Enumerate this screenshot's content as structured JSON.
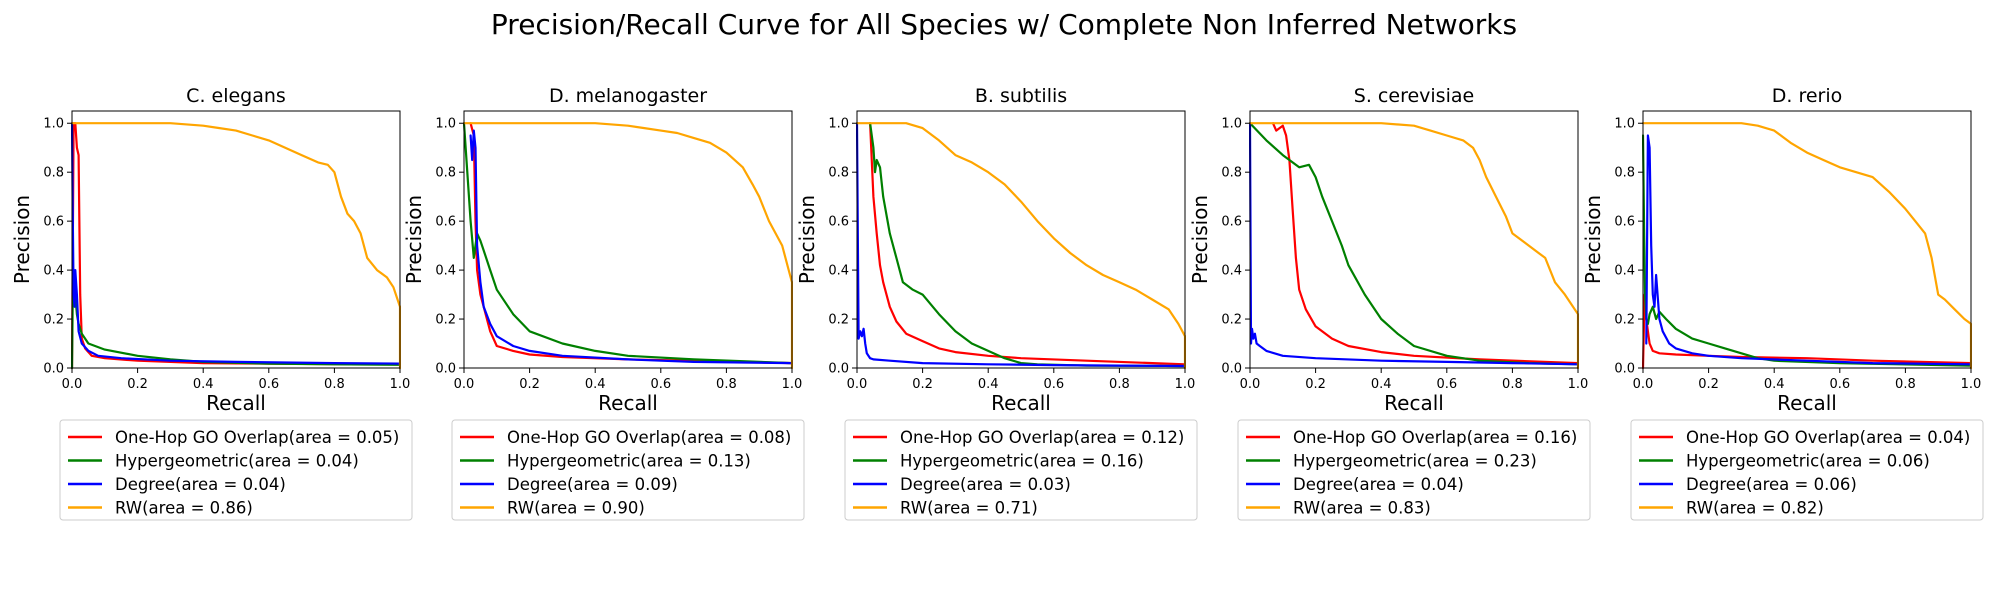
{
  "figure_title": "Precision/Recall Curve for All Species w/ Complete Non Inferred Networks",
  "colors": {
    "One-Hop GO Overlap": "#ff0000",
    "Hypergeometric": "#008000",
    "Degree": "#0000ff",
    "RW": "#ffa500"
  },
  "chart_data": [
    {
      "type": "line",
      "title": "C. elegans",
      "xlabel": "Recall",
      "ylabel": "Precision",
      "xlim": [
        0,
        1
      ],
      "ylim": [
        0,
        1.05
      ],
      "xticks": [
        "0.0",
        "0.2",
        "0.4",
        "0.6",
        "0.8",
        "1.0"
      ],
      "yticks": [
        "0.0",
        "0.2",
        "0.4",
        "0.6",
        "0.8",
        "1.0"
      ],
      "grid": false,
      "legend_position": "below",
      "series": [
        {
          "name": "One-Hop GO Overlap",
          "legend": "One-Hop GO Overlap(area = 0.05)",
          "x": [
            0,
            0.005,
            0.01,
            0.015,
            0.02,
            0.025,
            0.03,
            0.04,
            0.06,
            0.1,
            0.2,
            0.4,
            0.6,
            0.8,
            1.0
          ],
          "y": [
            0,
            1.0,
            1.0,
            0.9,
            0.87,
            0.3,
            0.12,
            0.08,
            0.05,
            0.04,
            0.03,
            0.02,
            0.018,
            0.016,
            0.015
          ]
        },
        {
          "name": "Hypergeometric",
          "legend": "Hypergeometric(area = 0.04)",
          "x": [
            0,
            0.003,
            0.006,
            0.01,
            0.015,
            0.02,
            0.03,
            0.05,
            0.1,
            0.2,
            0.3,
            0.4,
            0.6,
            0.8,
            1.0
          ],
          "y": [
            0,
            0.4,
            0.35,
            0.3,
            0.22,
            0.18,
            0.14,
            0.1,
            0.075,
            0.05,
            0.035,
            0.025,
            0.018,
            0.015,
            0.013
          ]
        },
        {
          "name": "Degree",
          "legend": "Degree(area = 0.04)",
          "x": [
            0,
            0.002,
            0.005,
            0.008,
            0.01,
            0.015,
            0.02,
            0.03,
            0.05,
            0.08,
            0.15,
            0.3,
            0.5,
            0.8,
            1.0
          ],
          "y": [
            1.0,
            0.65,
            0.3,
            0.25,
            0.4,
            0.3,
            0.15,
            0.1,
            0.07,
            0.05,
            0.04,
            0.03,
            0.025,
            0.02,
            0.018
          ]
        },
        {
          "name": "RW",
          "legend": "RW(area = 0.86)",
          "x": [
            0,
            0.1,
            0.2,
            0.3,
            0.4,
            0.45,
            0.5,
            0.55,
            0.6,
            0.65,
            0.7,
            0.75,
            0.78,
            0.8,
            0.82,
            0.84,
            0.86,
            0.88,
            0.9,
            0.93,
            0.96,
            0.98,
            1.0,
            1.0
          ],
          "y": [
            1.0,
            1.0,
            1.0,
            1.0,
            0.99,
            0.98,
            0.97,
            0.95,
            0.93,
            0.9,
            0.87,
            0.84,
            0.83,
            0.8,
            0.7,
            0.63,
            0.6,
            0.55,
            0.45,
            0.4,
            0.37,
            0.33,
            0.25,
            0.0
          ]
        }
      ]
    },
    {
      "type": "line",
      "title": "D. melanogaster",
      "xlabel": "Recall",
      "ylabel": "Precision",
      "xlim": [
        0,
        1
      ],
      "ylim": [
        0,
        1.05
      ],
      "xticks": [
        "0.0",
        "0.2",
        "0.4",
        "0.6",
        "0.8",
        "1.0"
      ],
      "yticks": [
        "0.0",
        "0.2",
        "0.4",
        "0.6",
        "0.8",
        "1.0"
      ],
      "grid": false,
      "legend_position": "below",
      "series": [
        {
          "name": "One-Hop GO Overlap",
          "legend": "One-Hop GO Overlap(area = 0.08)",
          "x": [
            0.02,
            0.03,
            0.035,
            0.04,
            0.05,
            0.06,
            0.08,
            0.1,
            0.15,
            0.2,
            0.3,
            0.5,
            0.7,
            1.0
          ],
          "y": [
            1.0,
            0.95,
            0.6,
            0.4,
            0.3,
            0.25,
            0.15,
            0.09,
            0.07,
            0.055,
            0.045,
            0.035,
            0.03,
            0.02
          ]
        },
        {
          "name": "Hypergeometric",
          "legend": "Hypergeometric(area = 0.13)",
          "x": [
            0,
            0.01,
            0.02,
            0.03,
            0.04,
            0.05,
            0.06,
            0.08,
            0.1,
            0.15,
            0.2,
            0.3,
            0.4,
            0.5,
            0.7,
            1.0
          ],
          "y": [
            1.0,
            0.8,
            0.6,
            0.45,
            0.55,
            0.52,
            0.48,
            0.4,
            0.32,
            0.22,
            0.15,
            0.1,
            0.07,
            0.05,
            0.035,
            0.02
          ]
        },
        {
          "name": "Degree",
          "legend": "Degree(area = 0.09)",
          "x": [
            0.02,
            0.025,
            0.03,
            0.035,
            0.04,
            0.05,
            0.06,
            0.08,
            0.1,
            0.15,
            0.2,
            0.3,
            0.5,
            0.7,
            1.0
          ],
          "y": [
            0.95,
            0.85,
            0.97,
            0.9,
            0.5,
            0.35,
            0.25,
            0.18,
            0.13,
            0.09,
            0.07,
            0.05,
            0.035,
            0.025,
            0.02
          ]
        },
        {
          "name": "RW",
          "legend": "RW(area = 0.90)",
          "x": [
            0,
            0.1,
            0.2,
            0.3,
            0.4,
            0.5,
            0.55,
            0.6,
            0.65,
            0.7,
            0.75,
            0.8,
            0.85,
            0.88,
            0.9,
            0.93,
            0.95,
            0.97,
            0.99,
            1.0,
            1.0
          ],
          "y": [
            1.0,
            1.0,
            1.0,
            1.0,
            1.0,
            0.99,
            0.98,
            0.97,
            0.96,
            0.94,
            0.92,
            0.88,
            0.82,
            0.75,
            0.7,
            0.6,
            0.55,
            0.5,
            0.4,
            0.35,
            0.0
          ]
        }
      ]
    },
    {
      "type": "line",
      "title": "B. subtilis",
      "xlabel": "Recall",
      "ylabel": "Precision",
      "xlim": [
        0,
        1
      ],
      "ylim": [
        0,
        1.05
      ],
      "xticks": [
        "0.0",
        "0.2",
        "0.4",
        "0.6",
        "0.8",
        "1.0"
      ],
      "yticks": [
        "0.0",
        "0.2",
        "0.4",
        "0.6",
        "0.8",
        "1.0"
      ],
      "grid": false,
      "legend_position": "below",
      "series": [
        {
          "name": "One-Hop GO Overlap",
          "legend": "One-Hop GO Overlap(area = 0.12)",
          "x": [
            0.04,
            0.05,
            0.06,
            0.07,
            0.08,
            0.1,
            0.12,
            0.15,
            0.2,
            0.25,
            0.3,
            0.4,
            0.5,
            0.7,
            1.0
          ],
          "y": [
            1.0,
            0.7,
            0.55,
            0.42,
            0.35,
            0.25,
            0.19,
            0.14,
            0.11,
            0.08,
            0.065,
            0.05,
            0.04,
            0.03,
            0.015
          ]
        },
        {
          "name": "Hypergeometric",
          "legend": "Hypergeometric(area = 0.16)",
          "x": [
            0.04,
            0.05,
            0.055,
            0.06,
            0.07,
            0.08,
            0.1,
            0.12,
            0.14,
            0.17,
            0.2,
            0.25,
            0.3,
            0.35,
            0.4,
            0.45,
            0.5,
            0.55,
            0.7,
            1.0
          ],
          "y": [
            1.0,
            0.9,
            0.8,
            0.85,
            0.82,
            0.7,
            0.55,
            0.45,
            0.35,
            0.32,
            0.3,
            0.22,
            0.15,
            0.1,
            0.07,
            0.04,
            0.02,
            0.015,
            0.01,
            0.008
          ]
        },
        {
          "name": "Degree",
          "legend": "Degree(area = 0.03)",
          "x": [
            0,
            0.005,
            0.01,
            0.015,
            0.02,
            0.025,
            0.03,
            0.04,
            0.05,
            0.1,
            0.2,
            0.4,
            0.6,
            0.8,
            1.0
          ],
          "y": [
            1.0,
            0.12,
            0.15,
            0.13,
            0.16,
            0.1,
            0.06,
            0.04,
            0.035,
            0.03,
            0.02,
            0.015,
            0.012,
            0.01,
            0.008
          ]
        },
        {
          "name": "RW",
          "legend": "RW(area = 0.71)",
          "x": [
            0,
            0.1,
            0.15,
            0.2,
            0.25,
            0.3,
            0.35,
            0.4,
            0.45,
            0.5,
            0.55,
            0.6,
            0.65,
            0.7,
            0.75,
            0.8,
            0.85,
            0.9,
            0.95,
            0.98,
            1.0,
            1.0
          ],
          "y": [
            1.0,
            1.0,
            1.0,
            0.98,
            0.93,
            0.87,
            0.84,
            0.8,
            0.75,
            0.68,
            0.6,
            0.53,
            0.47,
            0.42,
            0.38,
            0.35,
            0.32,
            0.28,
            0.24,
            0.18,
            0.13,
            0.0
          ]
        }
      ]
    },
    {
      "type": "line",
      "title": "S. cerevisiae",
      "xlabel": "Recall",
      "ylabel": "Precision",
      "xlim": [
        0,
        1
      ],
      "ylim": [
        0,
        1.05
      ],
      "xticks": [
        "0.0",
        "0.2",
        "0.4",
        "0.6",
        "0.8",
        "1.0"
      ],
      "yticks": [
        "0.0",
        "0.2",
        "0.4",
        "0.6",
        "0.8",
        "1.0"
      ],
      "grid": false,
      "legend_position": "below",
      "series": [
        {
          "name": "One-Hop GO Overlap",
          "legend": "One-Hop GO Overlap(area = 0.16)",
          "x": [
            0.07,
            0.08,
            0.1,
            0.11,
            0.12,
            0.13,
            0.14,
            0.15,
            0.17,
            0.2,
            0.25,
            0.3,
            0.4,
            0.5,
            0.7,
            1.0
          ],
          "y": [
            1.0,
            0.97,
            0.99,
            0.95,
            0.85,
            0.65,
            0.45,
            0.32,
            0.24,
            0.17,
            0.12,
            0.09,
            0.065,
            0.05,
            0.035,
            0.02
          ]
        },
        {
          "name": "Hypergeometric",
          "legend": "Hypergeometric(area = 0.23)",
          "x": [
            0,
            0.05,
            0.1,
            0.15,
            0.18,
            0.2,
            0.22,
            0.25,
            0.28,
            0.3,
            0.35,
            0.4,
            0.45,
            0.5,
            0.6,
            0.7,
            0.85,
            1.0
          ],
          "y": [
            1.0,
            0.93,
            0.87,
            0.82,
            0.83,
            0.78,
            0.7,
            0.6,
            0.5,
            0.42,
            0.3,
            0.2,
            0.14,
            0.09,
            0.05,
            0.03,
            0.02,
            0.015
          ]
        },
        {
          "name": "Degree",
          "legend": "Degree(area = 0.04)",
          "x": [
            0,
            0.003,
            0.006,
            0.01,
            0.015,
            0.02,
            0.03,
            0.05,
            0.1,
            0.2,
            0.4,
            0.6,
            0.8,
            1.0
          ],
          "y": [
            1.0,
            0.1,
            0.16,
            0.12,
            0.14,
            0.1,
            0.09,
            0.07,
            0.05,
            0.04,
            0.03,
            0.025,
            0.02,
            0.015
          ]
        },
        {
          "name": "RW",
          "legend": "RW(area = 0.83)",
          "x": [
            0,
            0.1,
            0.2,
            0.3,
            0.4,
            0.5,
            0.55,
            0.6,
            0.65,
            0.68,
            0.7,
            0.72,
            0.75,
            0.78,
            0.8,
            0.85,
            0.88,
            0.9,
            0.93,
            0.96,
            1.0,
            1.0
          ],
          "y": [
            1.0,
            1.0,
            1.0,
            1.0,
            1.0,
            0.99,
            0.97,
            0.95,
            0.93,
            0.9,
            0.85,
            0.78,
            0.7,
            0.62,
            0.55,
            0.5,
            0.47,
            0.45,
            0.35,
            0.3,
            0.22,
            0.0
          ]
        }
      ]
    },
    {
      "type": "line",
      "title": "D. rerio",
      "xlabel": "Recall",
      "ylabel": "Precision",
      "xlim": [
        0,
        1
      ],
      "ylim": [
        0,
        1.05
      ],
      "xticks": [
        "0.0",
        "0.2",
        "0.4",
        "0.6",
        "0.8",
        "1.0"
      ],
      "yticks": [
        "0.0",
        "0.2",
        "0.4",
        "0.6",
        "0.8",
        "1.0"
      ],
      "grid": false,
      "legend_position": "below",
      "series": [
        {
          "name": "One-Hop GO Overlap",
          "legend": "One-Hop GO Overlap(area = 0.04)",
          "x": [
            0,
            0.005,
            0.01,
            0.015,
            0.02,
            0.03,
            0.05,
            0.1,
            0.2,
            0.3,
            0.5,
            0.7,
            1.0
          ],
          "y": [
            0,
            0.3,
            0.2,
            0.15,
            0.1,
            0.07,
            0.06,
            0.055,
            0.05,
            0.045,
            0.04,
            0.03,
            0.02
          ]
        },
        {
          "name": "Hypergeometric",
          "legend": "Hypergeometric(area = 0.06)",
          "x": [
            0,
            0.003,
            0.006,
            0.01,
            0.015,
            0.02,
            0.03,
            0.04,
            0.05,
            0.07,
            0.1,
            0.15,
            0.2,
            0.25,
            0.3,
            0.35,
            0.4,
            0.6,
            1.0
          ],
          "y": [
            0.95,
            0.6,
            0.3,
            0.2,
            0.18,
            0.22,
            0.25,
            0.2,
            0.23,
            0.2,
            0.16,
            0.12,
            0.1,
            0.08,
            0.06,
            0.04,
            0.03,
            0.02,
            0.01
          ]
        },
        {
          "name": "Degree",
          "legend": "Degree(area = 0.06)",
          "x": [
            0.01,
            0.015,
            0.02,
            0.025,
            0.03,
            0.035,
            0.04,
            0.05,
            0.06,
            0.08,
            0.1,
            0.15,
            0.2,
            0.3,
            0.5,
            0.7,
            1.0
          ],
          "y": [
            0.1,
            0.95,
            0.9,
            0.5,
            0.3,
            0.25,
            0.38,
            0.2,
            0.15,
            0.1,
            0.08,
            0.06,
            0.05,
            0.04,
            0.03,
            0.02,
            0.015
          ]
        },
        {
          "name": "RW",
          "legend": "RW(area = 0.82)",
          "x": [
            0,
            0.1,
            0.2,
            0.3,
            0.35,
            0.4,
            0.45,
            0.5,
            0.55,
            0.6,
            0.65,
            0.7,
            0.75,
            0.8,
            0.83,
            0.86,
            0.88,
            0.9,
            0.92,
            0.95,
            0.98,
            1.0,
            1.0
          ],
          "y": [
            1.0,
            1.0,
            1.0,
            1.0,
            0.99,
            0.97,
            0.92,
            0.88,
            0.85,
            0.82,
            0.8,
            0.78,
            0.72,
            0.65,
            0.6,
            0.55,
            0.45,
            0.3,
            0.28,
            0.24,
            0.2,
            0.18,
            0.0
          ]
        }
      ]
    }
  ]
}
